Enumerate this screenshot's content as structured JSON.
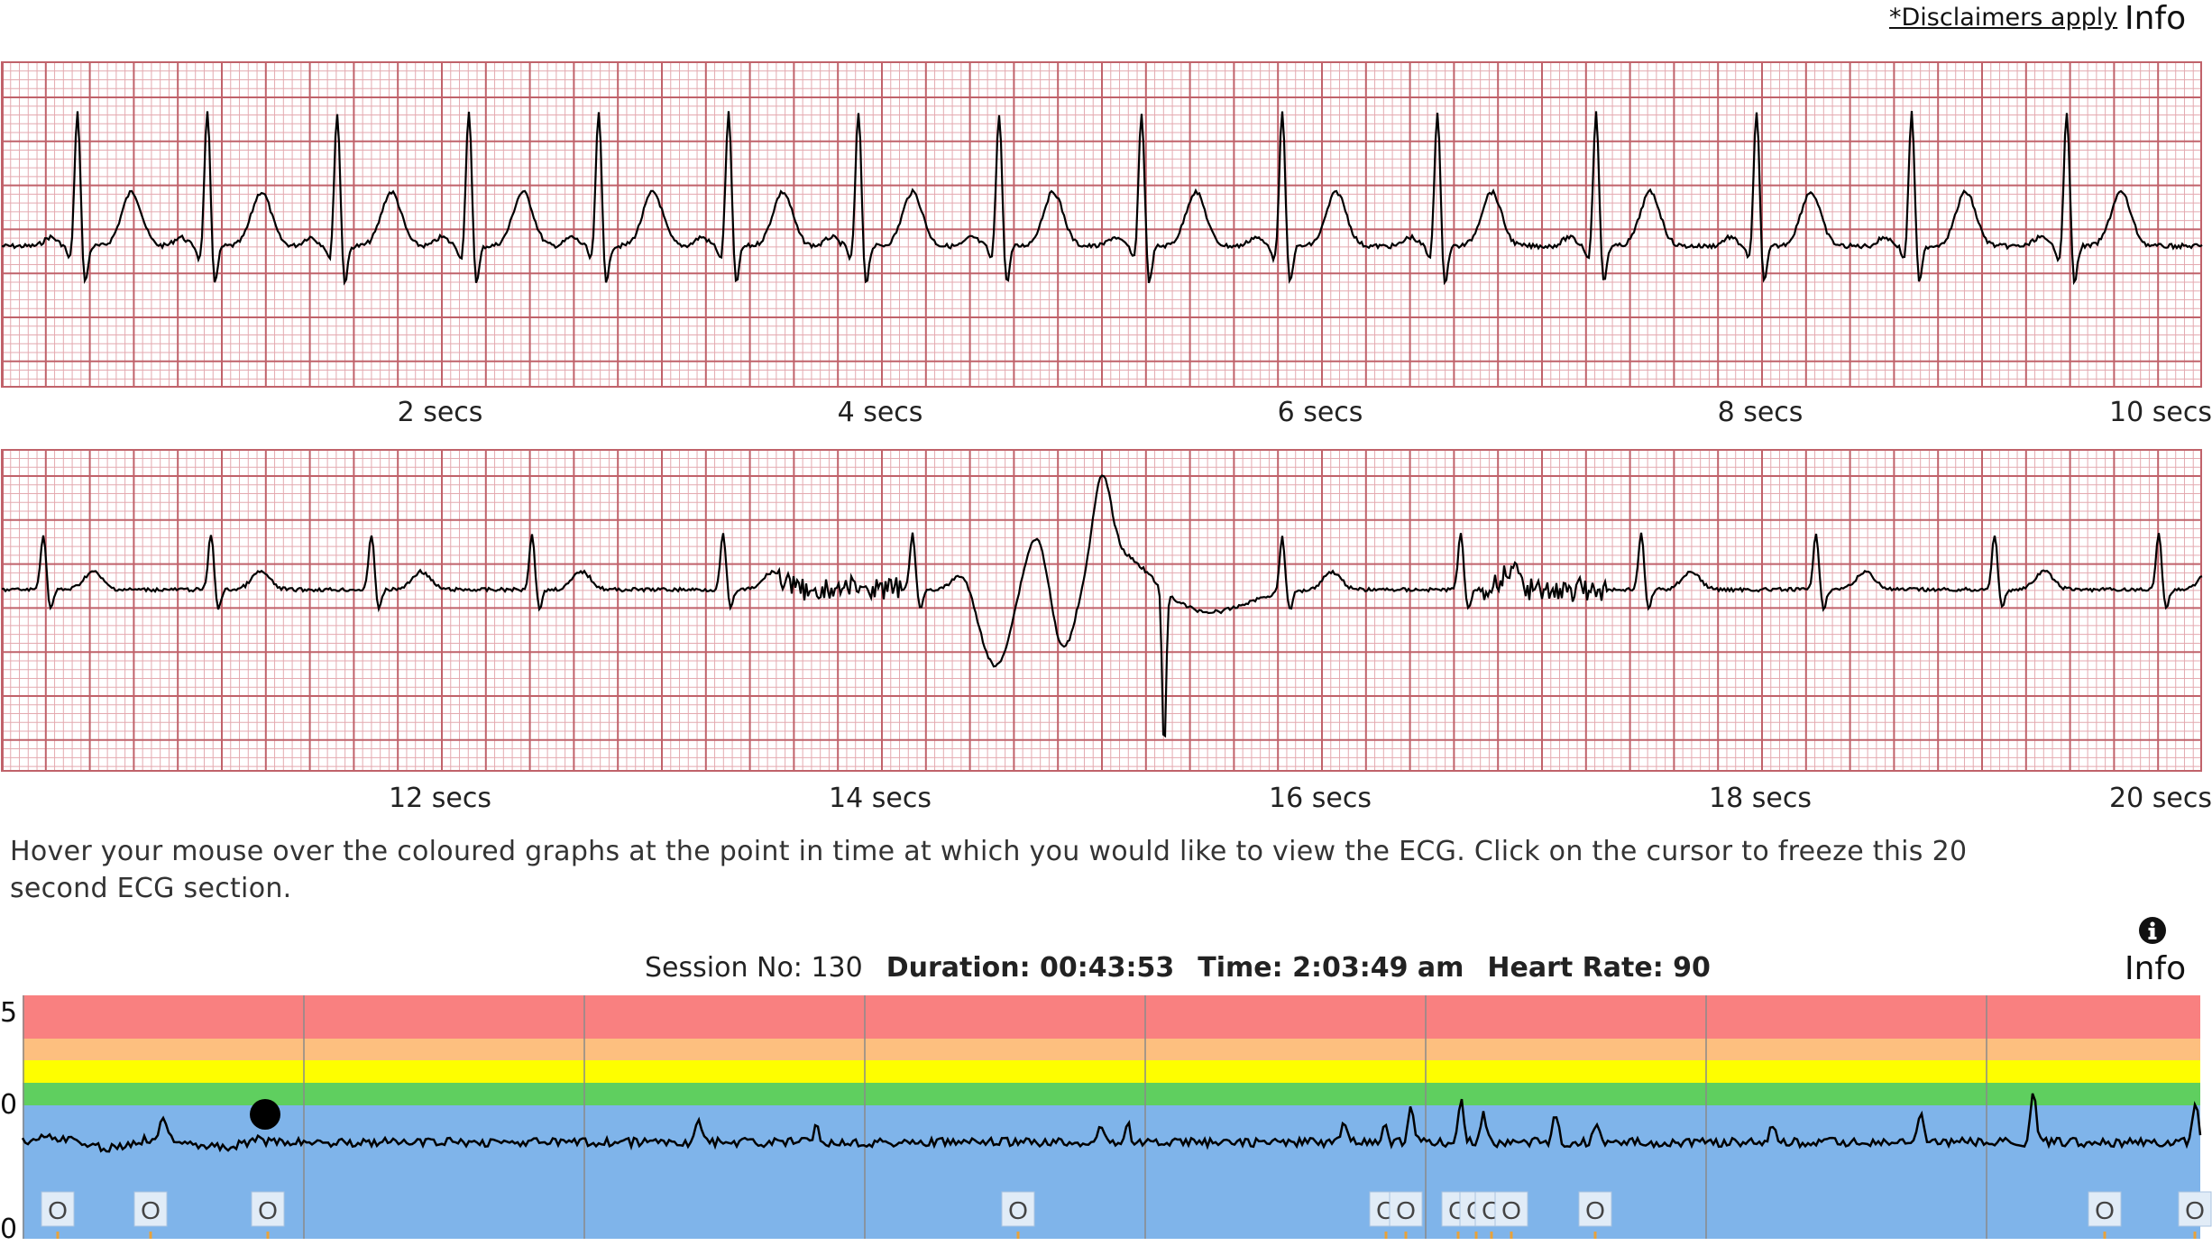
{
  "header": {
    "disclaimer_link": "*Disclaimers apply",
    "info_label": "Info"
  },
  "ecg": {
    "strip1_ticks": [
      "2 secs",
      "4 secs",
      "6 secs",
      "8 secs",
      "10 secs"
    ],
    "strip2_ticks": [
      "12 secs",
      "14 secs",
      "16 secs",
      "18 secs",
      "20 secs"
    ],
    "grid_major_color": "#c0626a",
    "grid_minor_color": "#e4aab0",
    "trace_color": "#000000"
  },
  "instructions": "Hover your mouse over the coloured graphs at the point in time at which you would like to view the ECG. Click on the cursor to freeze this 20 second ECG section.",
  "session": {
    "session_no_label": "Session No: 130",
    "duration_label": "Duration: 00:43:53",
    "time_label": "Time: 2:03:49 am",
    "heart_rate_label": "Heart Rate: 90",
    "info_label": "Info",
    "info_icon": "info-circle-icon"
  },
  "trend": {
    "y_labels": [
      "5",
      "0",
      "0"
    ],
    "bands": [
      {
        "name": "red",
        "color": "#f98080"
      },
      {
        "name": "orange",
        "color": "#fdbf7f"
      },
      {
        "name": "yellow",
        "color": "#fefe00"
      },
      {
        "name": "green",
        "color": "#5fcf5f"
      },
      {
        "name": "blue",
        "color": "#7fb4ea"
      }
    ],
    "marker_label": "O",
    "event_markers": [
      "O",
      "O",
      "O",
      "O",
      "O",
      "O",
      "O",
      "O",
      "O",
      "O",
      "O",
      "O",
      "O"
    ]
  }
}
